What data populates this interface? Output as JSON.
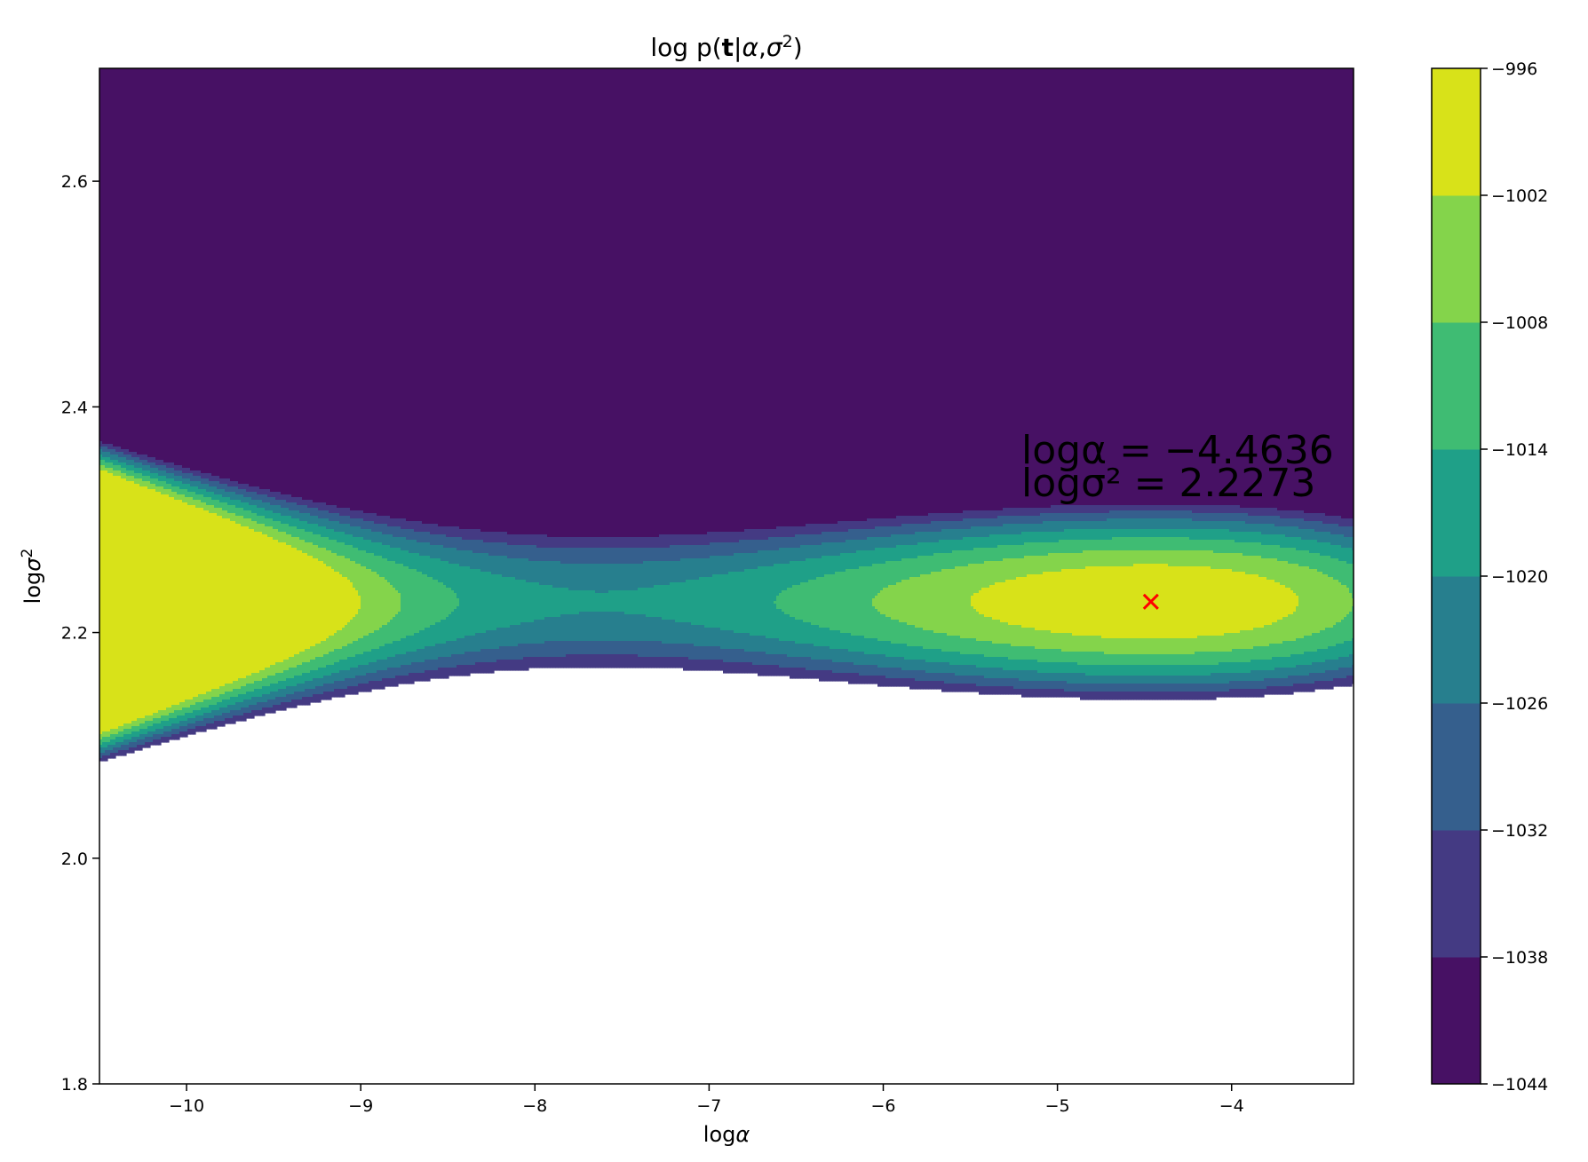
{
  "chart_data": {
    "type": "contour",
    "title": "log p(t|α,σ²)",
    "xlabel": "logα",
    "ylabel": "logσ²",
    "xlim": [
      -10.5,
      -3.3
    ],
    "ylim": [
      1.8,
      2.7
    ],
    "xticks": [
      -10,
      -9,
      -8,
      -7,
      -6,
      -5,
      -4
    ],
    "xtick_labels": [
      "−10",
      "−9",
      "−8",
      "−7",
      "−6",
      "−5",
      "−4"
    ],
    "yticks": [
      1.8,
      2.0,
      2.2,
      2.4,
      2.6
    ],
    "ytick_labels": [
      "1.8",
      "2.0",
      "2.2",
      "2.4",
      "2.6"
    ],
    "colormap": "viridis",
    "levels": [
      -1044,
      -1038,
      -1032,
      -1026,
      -1020,
      -1014,
      -1008,
      -1002,
      -996
    ],
    "level_colors": [
      "#471164",
      "#443a83",
      "#355f8d",
      "#277f8e",
      "#1fa088",
      "#3fbc73",
      "#84d44b",
      "#d8e219"
    ],
    "colorbar_tick_labels": [
      "−996",
      "−1002",
      "−1008",
      "−1014",
      "−1020",
      "−1026",
      "−1032",
      "−1038",
      "−1044"
    ],
    "maximum": {
      "x": -4.4636,
      "y": 2.2273,
      "marker": "x",
      "color": "#ff0000"
    },
    "annotation": {
      "line1": "logα = −4.4636",
      "line2": "logσ² = 2.2273"
    }
  }
}
